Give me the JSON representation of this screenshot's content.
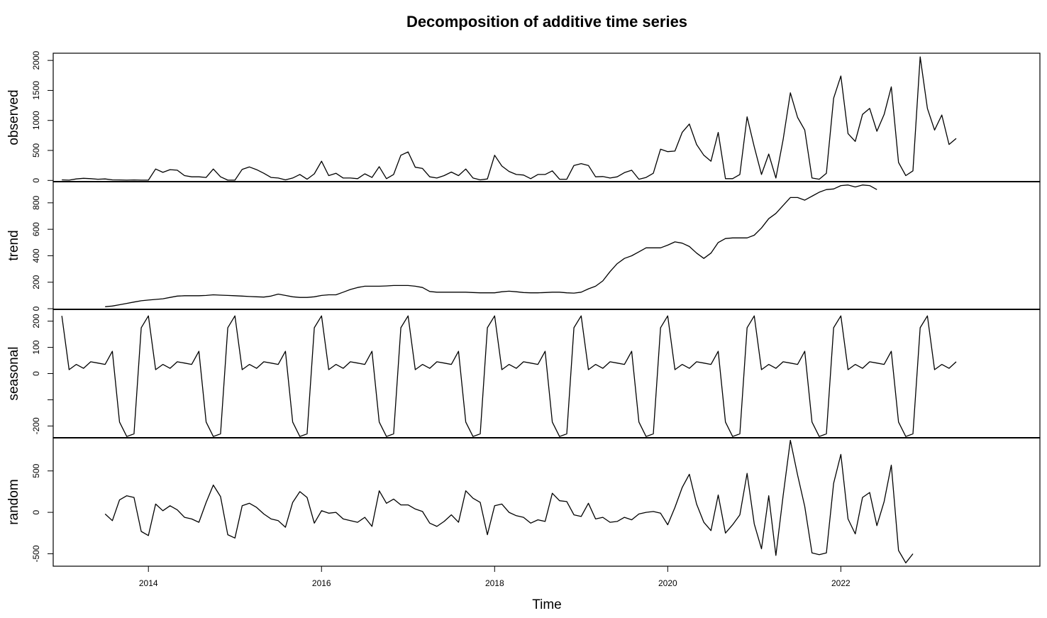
{
  "chart_data": {
    "type": "line",
    "title": "Decomposition of additive time series",
    "xlabel": "Time",
    "x_start": 2013.0,
    "frequency": 12,
    "xlim": [
      2012.9,
      2024.3
    ],
    "x_ticks": [
      2014,
      2016,
      2018,
      2020,
      2022
    ],
    "x_tick_labels": [
      "2014",
      "2016",
      "2018",
      "2020",
      "2022"
    ],
    "panels": [
      {
        "name": "observed",
        "ylabel": "observed",
        "ylim": [
          -20,
          2120
        ],
        "y_ticks": [
          0,
          500,
          1000,
          1500,
          2000
        ],
        "y_tick_labels": [
          "0",
          "500",
          "1000",
          "1500",
          "2000"
        ],
        "values": [
          10,
          5,
          25,
          35,
          30,
          20,
          25,
          10,
          8,
          5,
          8,
          5,
          5,
          190,
          135,
          180,
          170,
          80,
          60,
          60,
          50,
          190,
          60,
          5,
          5,
          185,
          225,
          180,
          120,
          50,
          40,
          10,
          40,
          100,
          20,
          110,
          320,
          80,
          120,
          40,
          40,
          30,
          110,
          50,
          230,
          30,
          100,
          420,
          475,
          220,
          200,
          60,
          40,
          80,
          140,
          80,
          190,
          40,
          10,
          25,
          420,
          240,
          150,
          100,
          90,
          30,
          100,
          100,
          160,
          20,
          20,
          250,
          280,
          250,
          60,
          65,
          40,
          60,
          130,
          170,
          20,
          50,
          120,
          520,
          480,
          490,
          800,
          940,
          600,
          420,
          320,
          800,
          30,
          30,
          100,
          1060,
          560,
          100,
          440,
          40,
          680,
          1460,
          1050,
          840,
          40,
          20,
          120,
          1370,
          1740,
          780,
          650,
          1100,
          1200,
          820,
          1100,
          1560,
          300,
          80,
          160,
          2060,
          1200,
          840,
          1090,
          600,
          700
        ]
      },
      {
        "name": "trend",
        "ylabel": "trend",
        "ylim": [
          -5,
          960
        ],
        "y_ticks": [
          0,
          200,
          400,
          600,
          800
        ],
        "y_tick_labels": [
          "0",
          "200",
          "400",
          "600",
          "800"
        ],
        "values": [
          null,
          null,
          null,
          null,
          null,
          null,
          15,
          20,
          30,
          40,
          50,
          60,
          65,
          70,
          75,
          85,
          95,
          98,
          98,
          98,
          100,
          105,
          102,
          100,
          98,
          95,
          92,
          90,
          88,
          95,
          110,
          100,
          90,
          85,
          85,
          90,
          100,
          105,
          105,
          125,
          145,
          160,
          170,
          170,
          170,
          172,
          175,
          175,
          175,
          170,
          160,
          130,
          125,
          125,
          125,
          125,
          125,
          122,
          120,
          120,
          120,
          128,
          132,
          128,
          122,
          120,
          120,
          122,
          125,
          125,
          120,
          118,
          125,
          150,
          170,
          210,
          280,
          340,
          380,
          400,
          430,
          460,
          460,
          460,
          480,
          505,
          495,
          470,
          420,
          380,
          420,
          500,
          530,
          535,
          535,
          535,
          555,
          610,
          680,
          720,
          780,
          840,
          840,
          820,
          850,
          880,
          900,
          905,
          930,
          935,
          920,
          935,
          930,
          900,
          null,
          null,
          null,
          null,
          null,
          null
        ]
      },
      {
        "name": "seasonal",
        "ylabel": "seasonal",
        "ylim": [
          -245,
          245
        ],
        "y_ticks": [
          -200,
          -100,
          0,
          100,
          200
        ],
        "y_tick_labels": [
          "-200",
          "",
          "0",
          "100",
          "200"
        ],
        "values": [
          220,
          15,
          35,
          20,
          45,
          40,
          35,
          85,
          -185,
          -240,
          -230,
          175,
          220,
          15,
          35,
          20,
          45,
          40,
          35,
          85,
          -185,
          -240,
          -230,
          175,
          220,
          15,
          35,
          20,
          45,
          40,
          35,
          85,
          -185,
          -240,
          -230,
          175,
          220,
          15,
          35,
          20,
          45,
          40,
          35,
          85,
          -185,
          -240,
          -230,
          175,
          220,
          15,
          35,
          20,
          45,
          40,
          35,
          85,
          -185,
          -240,
          -230,
          175,
          220,
          15,
          35,
          20,
          45,
          40,
          35,
          85,
          -185,
          -240,
          -230,
          175,
          220,
          15,
          35,
          20,
          45,
          40,
          35,
          85,
          -185,
          -240,
          -230,
          175,
          220,
          15,
          35,
          20,
          45,
          40,
          35,
          85,
          -185,
          -240,
          -230,
          175,
          220,
          15,
          35,
          20,
          45,
          40,
          35,
          85,
          -185,
          -240,
          -230,
          175,
          220,
          15,
          35,
          20,
          45,
          40,
          35,
          85,
          -185,
          -240,
          -230,
          175,
          220,
          15,
          35,
          20,
          45
        ]
      },
      {
        "name": "random",
        "ylabel": "random",
        "ylim": [
          -650,
          900
        ],
        "y_ticks": [
          -500,
          0,
          500
        ],
        "y_tick_labels": [
          "-500",
          "0",
          "500"
        ],
        "values": [
          null,
          null,
          null,
          null,
          null,
          null,
          -20,
          -100,
          150,
          200,
          180,
          -230,
          -280,
          100,
          20,
          80,
          30,
          -60,
          -80,
          -120,
          120,
          330,
          190,
          -270,
          -310,
          80,
          110,
          60,
          -20,
          -80,
          -100,
          -180,
          120,
          250,
          180,
          -130,
          20,
          -10,
          0,
          -80,
          -100,
          -120,
          -60,
          -170,
          260,
          110,
          160,
          90,
          90,
          40,
          10,
          -130,
          -170,
          -110,
          -30,
          -120,
          260,
          170,
          120,
          -270,
          80,
          100,
          0,
          -40,
          -60,
          -130,
          -90,
          -110,
          230,
          140,
          130,
          -30,
          -50,
          110,
          -80,
          -60,
          -120,
          -110,
          -60,
          -90,
          -20,
          0,
          10,
          -10,
          -150,
          60,
          300,
          460,
          100,
          -120,
          -220,
          210,
          -250,
          -150,
          -30,
          470,
          -140,
          -440,
          200,
          -520,
          200,
          870,
          450,
          70,
          -490,
          -510,
          -490,
          350,
          700,
          -80,
          -260,
          180,
          240,
          -160,
          130,
          570,
          -460,
          -610,
          -500,
          null,
          null,
          null,
          null,
          null,
          null
        ]
      }
    ]
  }
}
